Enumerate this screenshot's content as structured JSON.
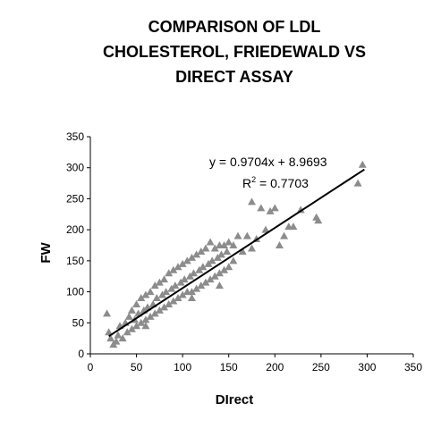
{
  "chart_data": {
    "type": "scatter",
    "title": [
      "COMPARISON OF LDL",
      "CHOLESTEROL, FRIEDEWALD VS",
      "DIRECT ASSAY"
    ],
    "x_label": "DIrect",
    "y_label": "FW",
    "color": "#8c8c8c",
    "x": [
      18,
      20,
      22,
      25,
      28,
      30,
      32,
      35,
      38,
      40,
      42,
      45,
      45,
      48,
      50,
      50,
      52,
      55,
      55,
      58,
      60,
      60,
      62,
      65,
      65,
      68,
      70,
      70,
      72,
      75,
      75,
      78,
      80,
      80,
      82,
      85,
      85,
      88,
      90,
      90,
      92,
      95,
      95,
      98,
      100,
      100,
      102,
      105,
      105,
      108,
      110,
      110,
      112,
      115,
      115,
      118,
      120,
      120,
      122,
      125,
      125,
      128,
      130,
      130,
      132,
      135,
      135,
      138,
      140,
      140,
      142,
      145,
      145,
      148,
      150,
      150,
      155,
      155,
      160,
      165,
      170,
      175,
      175,
      180,
      185,
      190,
      195,
      200,
      205,
      210,
      215,
      220,
      228,
      245,
      247,
      290,
      295,
      60,
      110,
      140
    ],
    "y": [
      65,
      35,
      25,
      15,
      20,
      30,
      45,
      25,
      50,
      35,
      60,
      40,
      70,
      55,
      45,
      80,
      65,
      50,
      90,
      70,
      55,
      95,
      75,
      60,
      100,
      80,
      65,
      110,
      90,
      70,
      115,
      95,
      75,
      120,
      100,
      80,
      130,
      105,
      85,
      135,
      110,
      90,
      140,
      115,
      95,
      145,
      120,
      100,
      150,
      125,
      100,
      155,
      130,
      105,
      160,
      135,
      110,
      165,
      140,
      115,
      170,
      145,
      120,
      180,
      150,
      125,
      170,
      155,
      130,
      175,
      160,
      135,
      175,
      165,
      140,
      180,
      150,
      175,
      190,
      165,
      190,
      245,
      170,
      185,
      235,
      200,
      230,
      235,
      175,
      190,
      205,
      205,
      232,
      220,
      215,
      275,
      305,
      45,
      90,
      110
    ],
    "trendline": {
      "slope": 0.9704,
      "intercept": 8.9693,
      "x_range": [
        20,
        297
      ],
      "color": "#000000"
    },
    "equation": "y = 0.9704x + 8.9693",
    "r_squared": {
      "base": "R",
      "sup": "2",
      "rest": " = 0.7703"
    },
    "xlim": [
      0,
      350
    ],
    "ylim": [
      0,
      350
    ],
    "xticks": [
      0,
      50,
      100,
      150,
      200,
      250,
      300,
      350
    ],
    "yticks": [
      0,
      50,
      100,
      150,
      200,
      250,
      300,
      350
    ]
  }
}
